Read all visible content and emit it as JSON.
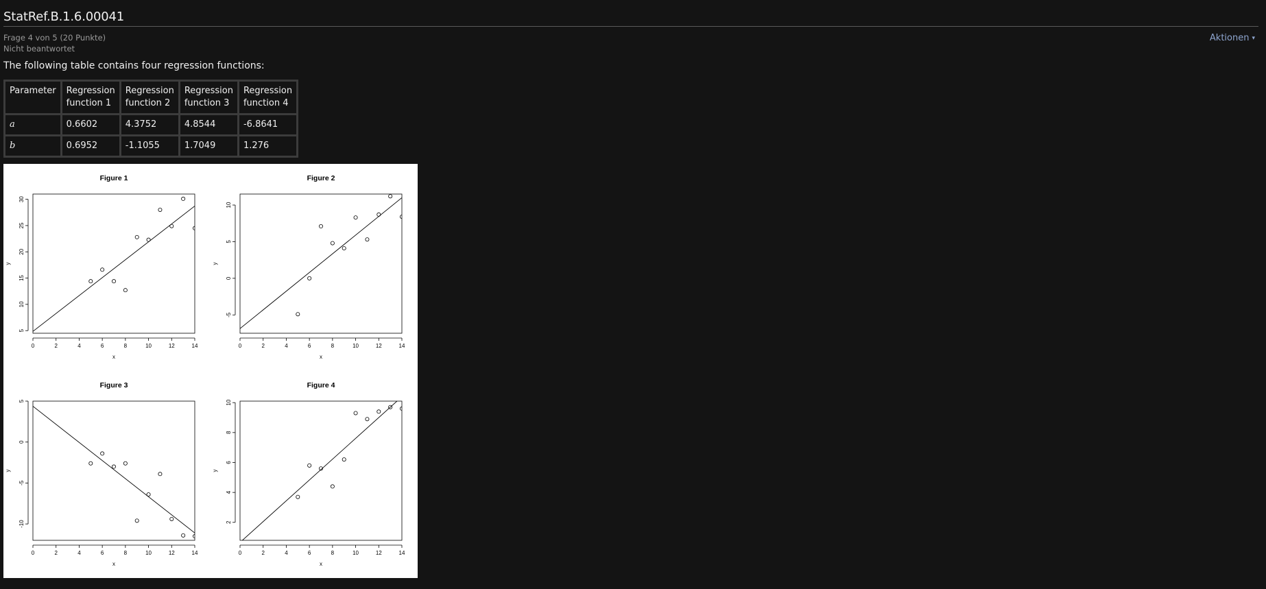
{
  "page": {
    "title": "StatRef.B.1.6.00041",
    "question_info": "Frage 4 von 5 (20 Punkte)",
    "status": "Nicht beantwortet",
    "actions_label": "Aktionen",
    "intro_text": "The following table contains four regression functions:"
  },
  "table": {
    "headers": [
      "Parameter",
      "Regression function 1",
      "Regression function 2",
      "Regression function 3",
      "Regression function 4"
    ],
    "rows": [
      {
        "param": "a",
        "values": [
          "0.6602",
          "4.3752",
          "4.8544",
          "-6.8641"
        ]
      },
      {
        "param": "b",
        "values": [
          "0.6952",
          "-1.1055",
          "1.7049",
          "1.276"
        ]
      }
    ]
  },
  "chart_data": [
    {
      "type": "scatter",
      "title": "Figure 1",
      "xlabel": "x",
      "ylabel": "y",
      "xlim": [
        0,
        14
      ],
      "ylim": [
        4.5,
        31
      ],
      "xticks": [
        0,
        2,
        4,
        6,
        8,
        10,
        12,
        14
      ],
      "yticks": [
        5,
        10,
        15,
        20,
        25,
        30
      ],
      "points": {
        "x": [
          5,
          6,
          7,
          8,
          9,
          10,
          11,
          12,
          13,
          14
        ],
        "y": [
          14.4,
          16.6,
          14.4,
          12.7,
          22.8,
          22.3,
          28.0,
          24.9,
          30.1,
          24.5
        ]
      },
      "line": {
        "intercept": 4.8544,
        "slope": 1.7049
      }
    },
    {
      "type": "scatter",
      "title": "Figure 2",
      "xlabel": "x",
      "ylabel": "y",
      "xlim": [
        0,
        14
      ],
      "ylim": [
        -7.5,
        11.5
      ],
      "xticks": [
        0,
        2,
        4,
        6,
        8,
        10,
        12,
        14
      ],
      "yticks": [
        -5,
        0,
        5,
        10
      ],
      "points": {
        "x": [
          5,
          6,
          7,
          8,
          9,
          10,
          11,
          12,
          13,
          14
        ],
        "y": [
          -4.9,
          0.0,
          7.1,
          4.8,
          4.1,
          8.3,
          5.3,
          8.7,
          11.2,
          8.4
        ]
      },
      "line": {
        "intercept": -6.8641,
        "slope": 1.276
      }
    },
    {
      "type": "scatter",
      "title": "Figure 3",
      "xlabel": "x",
      "ylabel": "y",
      "xlim": [
        0,
        14
      ],
      "ylim": [
        -12,
        5
      ],
      "xticks": [
        0,
        2,
        4,
        6,
        8,
        10,
        12,
        14
      ],
      "yticks": [
        -10,
        -5,
        0,
        5
      ],
      "points": {
        "x": [
          5,
          6,
          7,
          8,
          9,
          10,
          11,
          12,
          13,
          14
        ],
        "y": [
          -2.6,
          -1.4,
          -3.0,
          -2.6,
          -9.6,
          -6.4,
          -3.9,
          -9.4,
          -11.4,
          -11.5
        ]
      },
      "line": {
        "intercept": 4.3752,
        "slope": -1.1055
      }
    },
    {
      "type": "scatter",
      "title": "Figure 4",
      "xlabel": "x",
      "ylabel": "y",
      "xlim": [
        0,
        14
      ],
      "ylim": [
        0.8,
        10.1
      ],
      "xticks": [
        0,
        2,
        4,
        6,
        8,
        10,
        12,
        14
      ],
      "yticks": [
        2,
        4,
        6,
        8,
        10
      ],
      "points": {
        "x": [
          5,
          6,
          7,
          8,
          9,
          10,
          11,
          12,
          13,
          14
        ],
        "y": [
          3.7,
          5.8,
          5.6,
          4.4,
          6.2,
          9.3,
          8.9,
          9.4,
          9.7,
          9.6
        ]
      },
      "line": {
        "intercept": 0.6602,
        "slope": 0.6952
      }
    }
  ]
}
